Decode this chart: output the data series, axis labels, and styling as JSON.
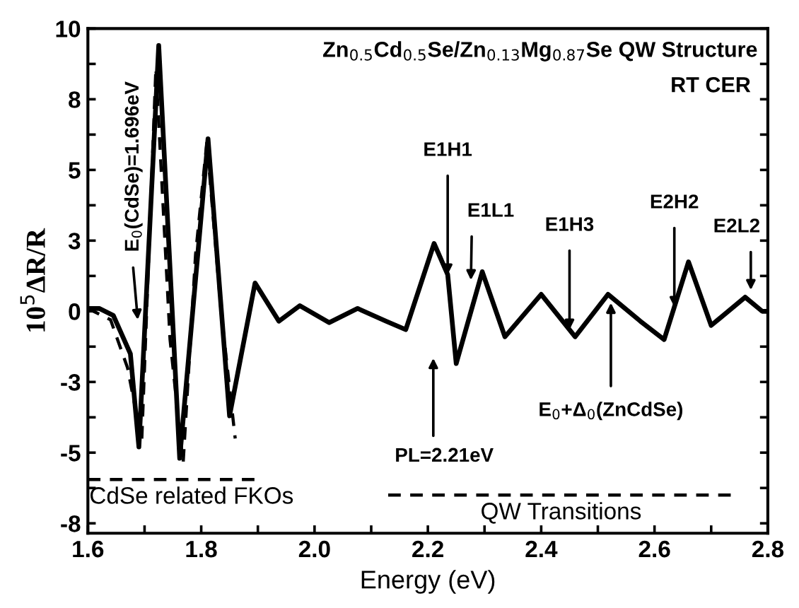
{
  "chart_data": {
    "type": "line",
    "title": "Zn$_{0.5}$Cd$_{0.5}$Se/Zn$_{0.13}$Mg$_{0.87}$Se QW Structure",
    "subtitle": "RT CER",
    "xlabel": "Energy (eV)",
    "ylabel": "10$^{5}$ΔR/R",
    "xlim": [
      1.6,
      2.8
    ],
    "ylim": [
      -7.85,
      10
    ],
    "xticks": [
      {
        "value": 1.6,
        "label": "1.6"
      },
      {
        "value": 1.7,
        "label": null
      },
      {
        "value": 1.8,
        "label": "1.8"
      },
      {
        "value": 1.9,
        "label": null
      },
      {
        "value": 2.0,
        "label": "2.0"
      },
      {
        "value": 2.1,
        "label": null
      },
      {
        "value": 2.2,
        "label": "2.2"
      },
      {
        "value": 2.3,
        "label": null
      },
      {
        "value": 2.4,
        "label": "2.4"
      },
      {
        "value": 2.5,
        "label": null
      },
      {
        "value": 2.6,
        "label": "2.6"
      },
      {
        "value": 2.7,
        "label": null
      },
      {
        "value": 2.8,
        "label": "2.8"
      }
    ],
    "yticks": [
      10,
      {
        "value": 8.75,
        "label": null
      },
      {
        "value": 7.5,
        "label": "8"
      },
      {
        "value": 6.25,
        "label": null
      },
      5,
      {
        "value": 3.75,
        "label": null
      },
      {
        "value": 2.5,
        "label": "3"
      },
      {
        "value": 1.25,
        "label": null
      },
      0,
      {
        "value": -1.25,
        "label": null
      },
      {
        "value": -2.5,
        "label": "-3"
      },
      {
        "value": -3.75,
        "label": null
      },
      {
        "value": -5,
        "label": "-5"
      },
      {
        "value": -6.25,
        "label": null
      },
      {
        "value": -7.5,
        "label": "-8"
      }
    ],
    "grid": false,
    "legend": false,
    "marker": "none",
    "series": [
      {
        "color": "#000000",
        "line_style": "solid",
        "x": [
          1.6,
          1.62,
          1.645,
          1.675,
          1.69,
          1.725,
          1.762,
          1.812,
          1.85,
          1.895,
          1.937,
          1.974,
          2.026,
          2.076,
          2.126,
          2.161,
          2.211,
          2.235,
          2.25,
          2.296,
          2.336,
          2.4,
          2.46,
          2.518,
          2.575,
          2.617,
          2.66,
          2.7,
          2.76,
          2.79,
          2.8
        ],
        "values": [
          0.1,
          0.1,
          -0.15,
          -1.5,
          -4.8,
          9.4,
          -5.2,
          6.1,
          -3.7,
          1.0,
          -0.35,
          0.2,
          -0.4,
          0.1,
          -0.35,
          -0.65,
          2.4,
          1.3,
          -1.85,
          1.4,
          -0.9,
          0.6,
          -0.9,
          0.6,
          -0.35,
          -1.0,
          1.75,
          -0.5,
          0.5,
          0.0,
          0.0
        ]
      },
      {
        "color": "#000000",
        "line_style": "dashed",
        "x": [
          1.6,
          1.64,
          1.67,
          1.695,
          1.72,
          1.745,
          1.768,
          1.79,
          1.81,
          1.835,
          1.86
        ],
        "values": [
          0.1,
          -0.3,
          -2.0,
          -4.6,
          8.6,
          -1.0,
          -5.4,
          2.0,
          6.0,
          0.0,
          -4.5
        ]
      },
      {
        "color": "#000000",
        "line_style": "dashed",
        "x": [
          1.6,
          1.9
        ],
        "values": [
          -5.95,
          -5.95
        ]
      },
      {
        "color": "#000000",
        "line_style": "dashed",
        "x": [
          2.13,
          2.74
        ],
        "values": [
          -6.5,
          -6.5
        ]
      }
    ],
    "annotations": [
      {
        "text": "E$_{0}$(CdSe)=1.696eV",
        "x": 1.688,
        "y": -0.3
      },
      {
        "text": "E1H1",
        "x": 2.235,
        "y": 1.3
      },
      {
        "text": "E1L1",
        "x": 2.276,
        "y": 1.1
      },
      {
        "text": "E1H3",
        "x": 2.45,
        "y": -0.65
      },
      {
        "text": "E2H2",
        "x": 2.635,
        "y": 0.15
      },
      {
        "text": "E2L2",
        "x": 2.77,
        "y": 0.75
      },
      "PL=2.21eV",
      {
        "text": "E$_{0}$+Δ$_{0}$(ZnCdSe)",
        "x": 2.523,
        "y": 0.3
      },
      {
        "text": "CdSe related FKOs",
        "x": 1.6,
        "y": -5.95
      },
      {
        "text": "QW Transitions",
        "x": 2.435,
        "y": -6.5
      }
    ]
  }
}
